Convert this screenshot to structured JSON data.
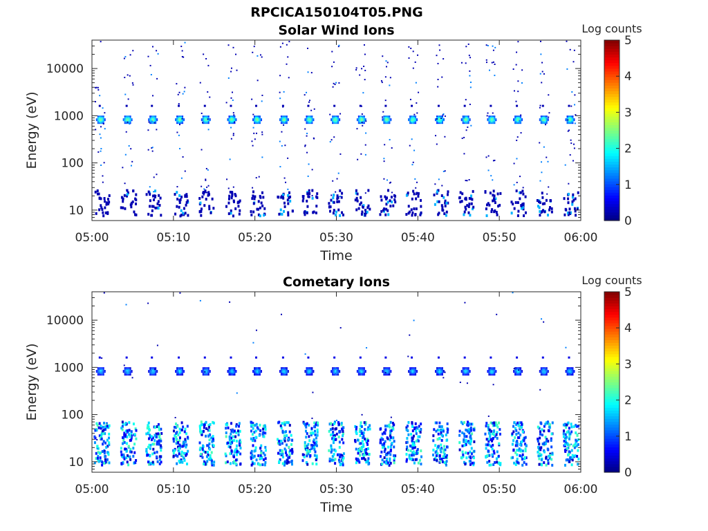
{
  "figure": {
    "title": "RPCICA150104T05.PNG"
  },
  "chart_data": [
    {
      "type": "heatmap",
      "title": "Solar Wind Ions",
      "xlabel": "Time",
      "ylabel": "Energy (eV)",
      "y_scale": "log",
      "ylim": [
        6,
        40000
      ],
      "x_ticks": [
        "05:00",
        "05:10",
        "05:20",
        "05:30",
        "05:40",
        "05:50",
        "06:00"
      ],
      "y_ticks": [
        10,
        100,
        1000,
        10000
      ],
      "y_tick_labels": [
        "10",
        "100",
        "1000",
        "10000"
      ],
      "colorbar": {
        "label": "Log counts",
        "range": [
          0,
          5
        ],
        "ticks": [
          "0",
          "1",
          "2",
          "3",
          "4",
          "5"
        ]
      },
      "scan_times_min": [
        1.0,
        4.3,
        7.4,
        10.7,
        13.9,
        17.1,
        20.2,
        23.5,
        26.6,
        29.8,
        33.0,
        36.1,
        39.3,
        42.6,
        45.8,
        49.0,
        52.2,
        55.4,
        58.6
      ],
      "features": [
        {
          "energy_eV": 850,
          "log_counts": 2.6,
          "note": "solar wind peak"
        },
        {
          "energy_eV": 20,
          "log_counts": 0.5
        },
        {
          "energy_eV": 2000,
          "log_counts": 0.3
        }
      ]
    },
    {
      "type": "heatmap",
      "title": "Cometary Ions",
      "xlabel": "Time",
      "ylabel": "Energy (eV)",
      "y_scale": "log",
      "ylim": [
        6,
        40000
      ],
      "x_ticks": [
        "05:00",
        "05:10",
        "05:20",
        "05:30",
        "05:40",
        "05:50",
        "06:00"
      ],
      "y_ticks": [
        10,
        100,
        1000,
        10000
      ],
      "y_tick_labels": [
        "10",
        "100",
        "1000",
        "10000"
      ],
      "colorbar": {
        "label": "Log counts",
        "range": [
          0,
          5
        ],
        "ticks": [
          "0",
          "1",
          "2",
          "3",
          "4",
          "5"
        ]
      },
      "scan_times_min": [
        1.0,
        4.3,
        7.4,
        10.7,
        13.9,
        17.1,
        20.2,
        23.5,
        26.6,
        29.8,
        33.0,
        36.1,
        39.3,
        42.6,
        45.8,
        49.0,
        52.2,
        55.4,
        58.6
      ],
      "features": [
        {
          "energy_eV": 850,
          "log_counts": 1.9
        },
        {
          "energy_eV": 30,
          "log_counts": 1.6,
          "note": "cometary ion band 10-70 eV"
        },
        {
          "energy_eV": 1700,
          "log_counts": 0.5
        }
      ]
    }
  ]
}
